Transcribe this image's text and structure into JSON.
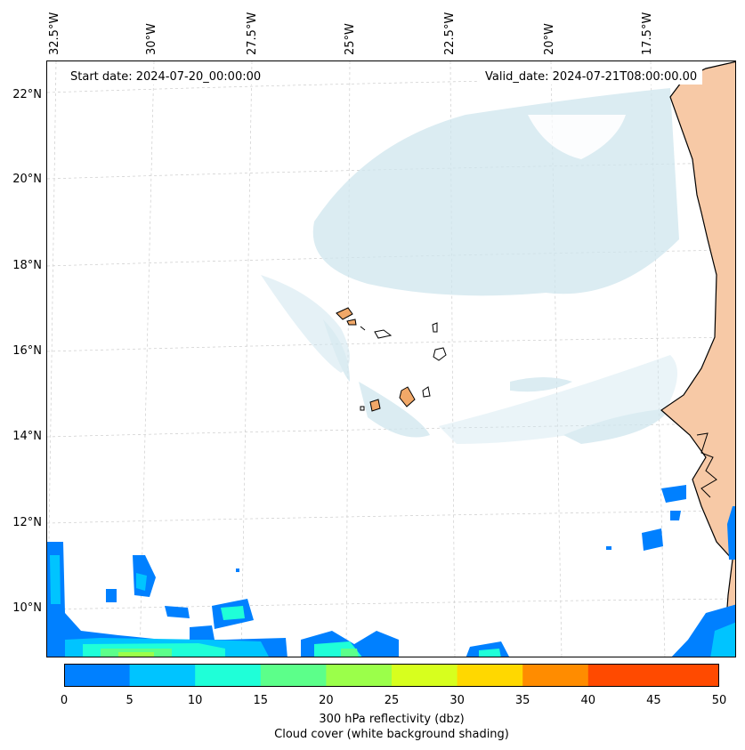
{
  "header": {
    "start_date": "Start date: 2024-07-20_00:00:00",
    "valid_date": "Valid_date: 2024-07-21T08:00:00.00"
  },
  "longitude_labels": [
    "32.5°W",
    "30°W",
    "27.5°W",
    "25°W",
    "22.5°W",
    "20°W",
    "17.5°W"
  ],
  "latitude_labels": [
    "22°N",
    "20°N",
    "18°N",
    "16°N",
    "14°N",
    "12°N",
    "10°N"
  ],
  "colorbar": {
    "ticks": [
      "0",
      "5",
      "10",
      "15",
      "20",
      "25",
      "30",
      "35",
      "40",
      "45",
      "50"
    ],
    "colors": [
      "#0080ff",
      "#00c4ff",
      "#1fffd8",
      "#5cff8a",
      "#9bff4a",
      "#d7ff1e",
      "#ffd800",
      "#ff8c00",
      "#ff4a00"
    ],
    "label_line1": "300 hPa reflectivity (dbz)",
    "label_line2": "Cloud cover (white background shading)"
  },
  "colors": {
    "cloud": "#cfe6ee",
    "land": "#f7c9a6",
    "island": "#f1a868",
    "coast": "#000000"
  }
}
